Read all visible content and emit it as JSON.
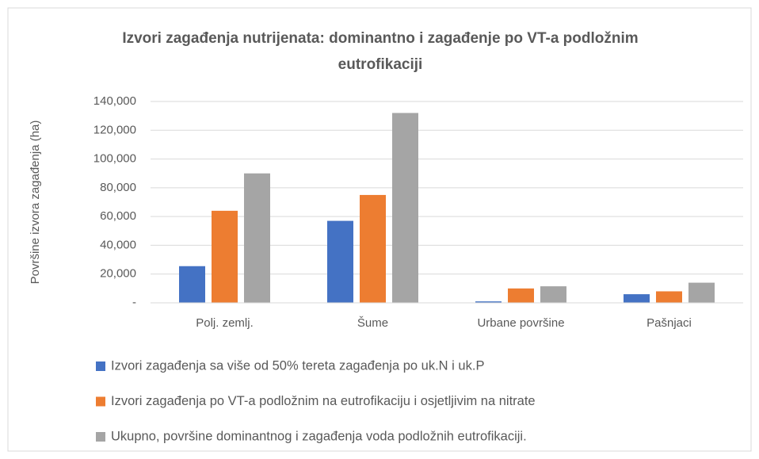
{
  "chart_data": {
    "type": "bar",
    "title": "Izvori zagađenja nutrijenata: dominantno i zagađenje po VT-a podložnim eutrofikaciji",
    "y_label": "Površine izvora zagađenja (ha)",
    "categories": [
      "Polj. zemlj.",
      "Šume",
      "Urbane površine",
      "Pašnjaci"
    ],
    "series": [
      {
        "name": "Izvori zagađenja sa više od 50% tereta zagađenja po uk.N i uk.P",
        "color": "#4472c4",
        "values": [
          25500,
          57000,
          1000,
          6000
        ]
      },
      {
        "name": "Izvori zagađenja po VT-a podložnim na eutrofikaciju i osjetljivim na nitrate",
        "color": "#ed7d31",
        "values": [
          64000,
          75000,
          10000,
          8000
        ]
      },
      {
        "name": "Ukupno, površine dominantnog i zagađenja voda podložnih eutrofikaciji.",
        "color": "#a5a5a5",
        "values": [
          90000,
          132000,
          11500,
          14000
        ]
      }
    ],
    "ylim": [
      0,
      140000
    ],
    "yticks": [
      {
        "value": 0,
        "label": "-"
      },
      {
        "value": 20000,
        "label": "20,000"
      },
      {
        "value": 40000,
        "label": "40,000"
      },
      {
        "value": 60000,
        "label": "60,000"
      },
      {
        "value": 80000,
        "label": "80,000"
      },
      {
        "value": 100000,
        "label": "100,000"
      },
      {
        "value": 120000,
        "label": "120,000"
      },
      {
        "value": 140000,
        "label": "140,000"
      }
    ],
    "grid": true,
    "legend": "bottom"
  }
}
